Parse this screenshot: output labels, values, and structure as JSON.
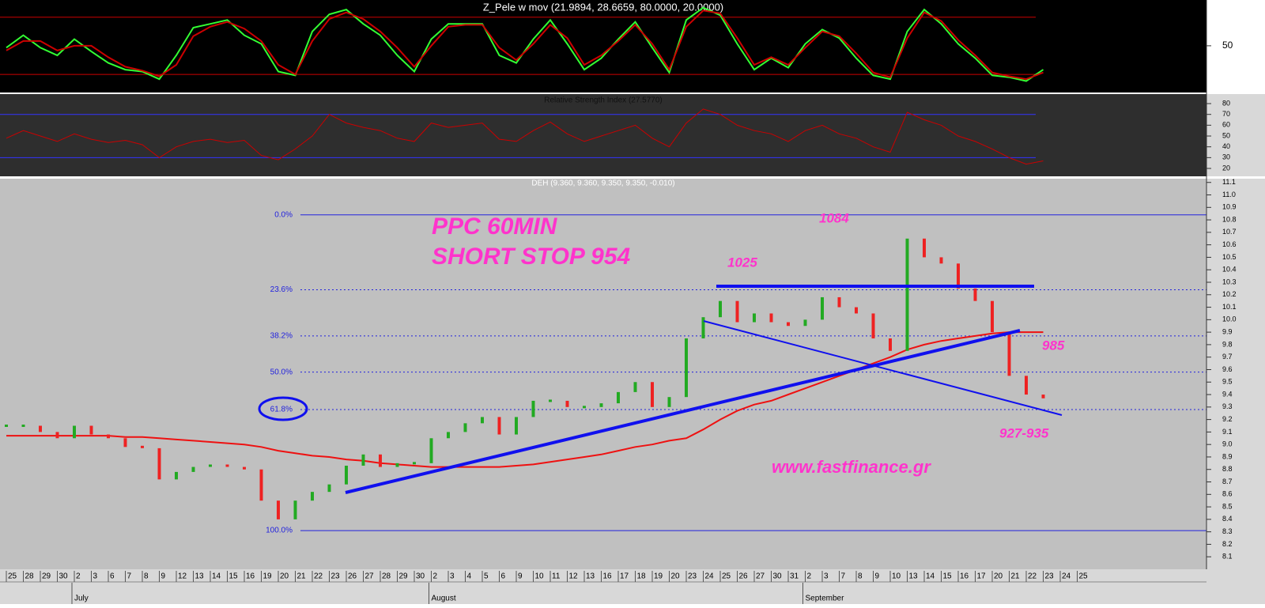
{
  "chart_data": [
    {
      "type": "line",
      "title": "Z_Pele w mov (21.9894, 28.6659, 80.0000, 20.0000)",
      "ylim": [
        1,
        98
      ],
      "yticks": [
        50
      ],
      "levels": [
        80,
        20
      ],
      "level_color": "#cc0000",
      "series": [
        {
          "color": "#33ff33",
          "values": [
            48,
            61,
            48,
            40,
            57,
            44,
            32,
            25,
            23,
            15,
            40,
            69,
            73,
            77,
            61,
            52,
            23,
            19,
            65,
            83,
            88,
            73,
            61,
            40,
            23,
            57,
            73,
            73,
            73,
            40,
            32,
            57,
            77,
            52,
            25,
            37,
            57,
            75,
            48,
            22,
            77,
            90,
            82,
            52,
            25,
            37,
            27,
            52,
            67,
            58,
            37,
            19,
            15,
            65,
            88,
            73,
            52,
            37,
            19,
            17,
            13,
            25
          ]
        },
        {
          "color": "#cc0000",
          "values": [
            45,
            55,
            55,
            45,
            50,
            50,
            38,
            28,
            24,
            18,
            30,
            60,
            70,
            75,
            68,
            55,
            30,
            20,
            55,
            78,
            85,
            78,
            65,
            48,
            28,
            50,
            70,
            72,
            72,
            48,
            35,
            52,
            72,
            58,
            30,
            40,
            55,
            72,
            52,
            25,
            70,
            87,
            84,
            58,
            30,
            38,
            30,
            48,
            65,
            60,
            42,
            22,
            17,
            58,
            85,
            76,
            56,
            40,
            22,
            18,
            15,
            22
          ]
        }
      ]
    },
    {
      "type": "line",
      "title": "Relative Strength Index (27.5770)",
      "ylim": [
        12.7,
        88.8
      ],
      "yticks": [
        20,
        30,
        40,
        50,
        60,
        70,
        80
      ],
      "levels": [
        70,
        30
      ],
      "level_color": "#3333ff",
      "series": [
        {
          "color": "#cc0000",
          "values": [
            48,
            55,
            50,
            45,
            52,
            47,
            44,
            46,
            42,
            30,
            40,
            45,
            47,
            44,
            46,
            32,
            28,
            38,
            50,
            70,
            62,
            58,
            55,
            48,
            45,
            62,
            58,
            60,
            62,
            47,
            45,
            55,
            63,
            52,
            45,
            50,
            55,
            60,
            48,
            40,
            62,
            75,
            70,
            60,
            55,
            52,
            45,
            55,
            60,
            52,
            48,
            40,
            35,
            72,
            65,
            60,
            50,
            45,
            38,
            30,
            24,
            27
          ]
        }
      ]
    },
    {
      "type": "price",
      "title": "DEH (9.360, 9.360, 9.350, 9.350, -0.010)",
      "categories": [
        "25",
        "28",
        "29",
        "30",
        "2",
        "3",
        "6",
        "7",
        "8",
        "9",
        "12",
        "13",
        "14",
        "15",
        "16",
        "19",
        "20",
        "21",
        "22",
        "23",
        "26",
        "27",
        "28",
        "29",
        "30",
        "2",
        "3",
        "4",
        "5",
        "6",
        "9",
        "10",
        "11",
        "12",
        "13",
        "16",
        "17",
        "18",
        "19",
        "20",
        "23",
        "24",
        "25",
        "26",
        "27",
        "30",
        "31",
        "2",
        "3",
        "7",
        "8",
        "9",
        "10",
        "13",
        "14",
        "15",
        "16",
        "17",
        "20",
        "21",
        "22",
        "23",
        "24",
        "25"
      ],
      "month_labels": [
        "July",
        "August",
        "September"
      ],
      "values": [
        9.15,
        9.15,
        9.1,
        9.05,
        9.15,
        9.08,
        9.05,
        8.98,
        8.97,
        8.72,
        8.78,
        8.82,
        8.83,
        8.82,
        8.8,
        8.55,
        8.4,
        8.55,
        8.62,
        8.68,
        8.83,
        8.92,
        8.82,
        8.85,
        8.85,
        9.05,
        9.1,
        9.17,
        9.22,
        9.08,
        9.22,
        9.35,
        9.35,
        9.3,
        9.3,
        9.33,
        9.42,
        9.5,
        9.3,
        9.38,
        9.85,
        10.02,
        10.15,
        9.98,
        10.05,
        9.98,
        9.95,
        10.0,
        10.18,
        10.1,
        10.05,
        9.85,
        9.75,
        10.65,
        10.5,
        10.45,
        10.25,
        10.15,
        9.9,
        9.55,
        9.4,
        9.37,
        null,
        null
      ],
      "up_color": "#22aa22",
      "down_color": "#ee2222",
      "moving_average": {
        "color": "#ee1111",
        "values": [
          9.07,
          9.07,
          9.07,
          9.07,
          9.07,
          9.07,
          9.07,
          9.06,
          9.06,
          9.05,
          9.04,
          9.03,
          9.02,
          9.01,
          9.0,
          8.98,
          8.95,
          8.93,
          8.91,
          8.9,
          8.88,
          8.87,
          8.85,
          8.84,
          8.83,
          8.82,
          8.82,
          8.82,
          8.82,
          8.82,
          8.83,
          8.84,
          8.86,
          8.88,
          8.9,
          8.92,
          8.95,
          8.98,
          9.0,
          9.03,
          9.05,
          9.12,
          9.2,
          9.27,
          9.32,
          9.35,
          9.4,
          9.45,
          9.5,
          9.55,
          9.6,
          9.65,
          9.7,
          9.76,
          9.8,
          9.83,
          9.85,
          9.87,
          9.89,
          9.9,
          9.9,
          9.9,
          null,
          null
        ]
      },
      "ylim": [
        8.0,
        11.13
      ],
      "yticks": [
        8.1,
        8.2,
        8.3,
        8.4,
        8.5,
        8.6,
        8.7,
        8.8,
        8.9,
        {
          "value": 9,
          "label": "9.0"
        },
        9.1,
        9.2,
        9.3,
        9.4,
        9.5,
        9.6,
        9.7,
        9.8,
        9.9,
        {
          "value": 10,
          "label": "10.0"
        },
        10.1,
        10.2,
        10.3,
        10.4,
        10.5,
        10.6,
        10.7,
        10.8,
        10.9,
        {
          "value": 11,
          "label": "11.0"
        },
        11.1
      ],
      "fib_levels": [
        {
          "value": 10.84,
          "label": "0.0%"
        },
        {
          "value": 10.24,
          "label": "23.6%"
        },
        {
          "value": 9.87,
          "label": "38.2%"
        },
        {
          "value": 9.58,
          "label": "50.0%"
        },
        {
          "value": 9.28,
          "label": "61.8%"
        },
        {
          "value": 8.31,
          "label": "100.0%"
        }
      ],
      "fib_color": "#2222dd",
      "annotations": [
        "PPC 60MIN",
        "SHORT STOP 954",
        "1025",
        "1084",
        "985",
        "927-935",
        "www.fastfinance.gr"
      ]
    }
  ]
}
